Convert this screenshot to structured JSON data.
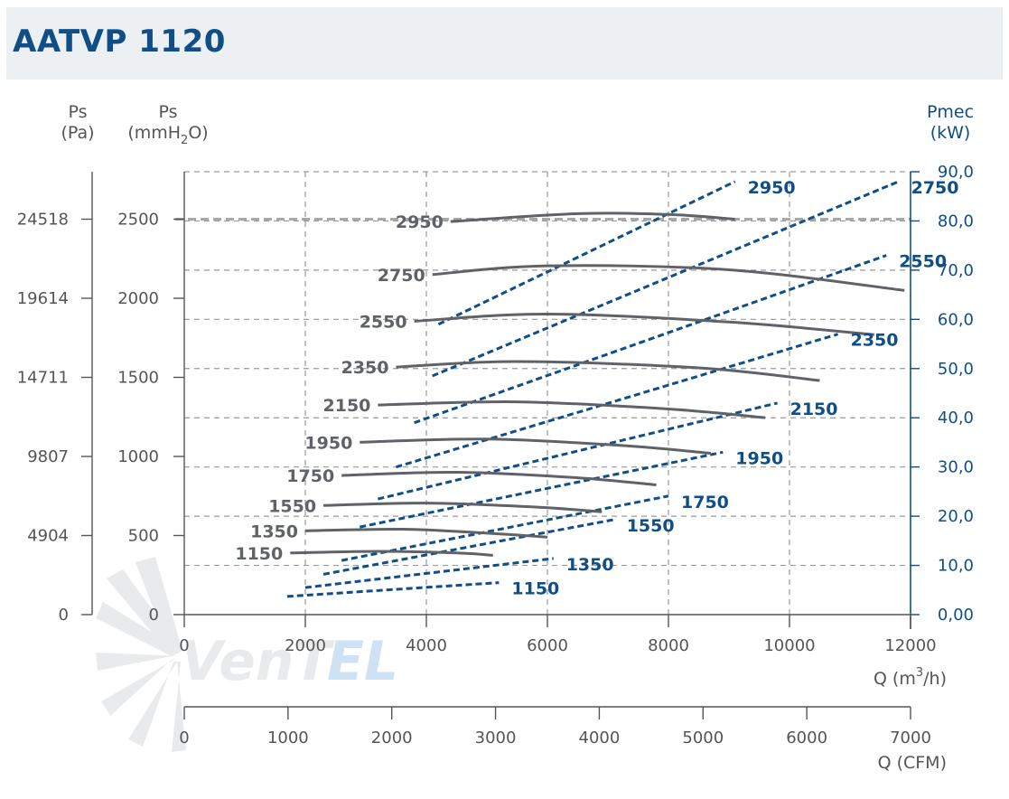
{
  "title": "AATVP 1120",
  "logo_text": "VenTEL",
  "colors": {
    "title": "#0f4e86",
    "header_bg": "#edf0f3",
    "pressure_curve": "#5f6368",
    "power_curve": "#0f4e86",
    "axis": "#555555",
    "grid": "#9a9a9a"
  },
  "chart_data": {
    "type": "line",
    "axes": {
      "y_left_pa": {
        "label": "Ps",
        "unit": "(Pa)",
        "ticks": [
          "0",
          "4904",
          "9807",
          "14711",
          "19614",
          "24518"
        ]
      },
      "y_left_mmh2o": {
        "label": "Ps",
        "unit_parts": [
          "(mmH",
          "2",
          "O)"
        ],
        "range": [
          0,
          2800
        ],
        "ticks": [
          "0",
          "500",
          "1000",
          "1500",
          "2000",
          "2500"
        ]
      },
      "y_right": {
        "label": "Pmec",
        "unit": "(kW)",
        "range": [
          0,
          90
        ],
        "ticks": [
          "0,00",
          "10,0",
          "20,0",
          "30,0",
          "40,0",
          "50,0",
          "60,0",
          "70,0",
          "80,0",
          "90,0"
        ]
      },
      "x_m3h": {
        "label_parts": [
          "Q (m",
          "3",
          "/h)"
        ],
        "range": [
          0,
          12000
        ],
        "ticks": [
          "0",
          "2000",
          "4000",
          "6000",
          "8000",
          "10000",
          "12000"
        ]
      },
      "x_cfm": {
        "label": "Q (CFM)",
        "range": [
          0,
          7000
        ],
        "ticks": [
          "0",
          "1000",
          "2000",
          "3000",
          "4000",
          "5000",
          "6000",
          "7000"
        ]
      }
    },
    "grid": true,
    "reference_line_ps": 2500,
    "pressure_series": [
      {
        "name": "1150",
        "points": [
          [
            1750,
            390
          ],
          [
            3200,
            400
          ],
          [
            4500,
            390
          ],
          [
            5100,
            375
          ]
        ]
      },
      {
        "name": "1350",
        "points": [
          [
            2000,
            530
          ],
          [
            3600,
            540
          ],
          [
            5000,
            515
          ],
          [
            6000,
            490
          ]
        ]
      },
      {
        "name": "1550",
        "points": [
          [
            2300,
            690
          ],
          [
            4000,
            705
          ],
          [
            5800,
            680
          ],
          [
            6900,
            650
          ]
        ]
      },
      {
        "name": "1750",
        "points": [
          [
            2600,
            880
          ],
          [
            4500,
            900
          ],
          [
            6500,
            865
          ],
          [
            7800,
            820
          ]
        ]
      },
      {
        "name": "1950",
        "points": [
          [
            2900,
            1090
          ],
          [
            5000,
            1110
          ],
          [
            7200,
            1070
          ],
          [
            8700,
            1020
          ]
        ]
      },
      {
        "name": "2150",
        "points": [
          [
            3200,
            1325
          ],
          [
            5500,
            1345
          ],
          [
            8000,
            1300
          ],
          [
            9600,
            1245
          ]
        ]
      },
      {
        "name": "2350",
        "points": [
          [
            3500,
            1565
          ],
          [
            5500,
            1600
          ],
          [
            8500,
            1560
          ],
          [
            10500,
            1480
          ]
        ]
      },
      {
        "name": "2550",
        "points": [
          [
            3800,
            1855
          ],
          [
            6000,
            1900
          ],
          [
            9000,
            1850
          ],
          [
            11400,
            1770
          ]
        ]
      },
      {
        "name": "2750",
        "points": [
          [
            4100,
            2150
          ],
          [
            6000,
            2205
          ],
          [
            9000,
            2180
          ],
          [
            11900,
            2050
          ]
        ]
      },
      {
        "name": "2950",
        "points": [
          [
            4400,
            2485
          ],
          [
            6500,
            2535
          ],
          [
            8000,
            2530
          ],
          [
            9100,
            2500
          ]
        ]
      }
    ],
    "power_series": [
      {
        "name": "1150",
        "points": [
          [
            1700,
            3.7
          ],
          [
            5200,
            6.5
          ]
        ]
      },
      {
        "name": "1350",
        "points": [
          [
            2000,
            5.5
          ],
          [
            6100,
            11.4
          ]
        ]
      },
      {
        "name": "1550",
        "points": [
          [
            2300,
            8.2
          ],
          [
            7100,
            19.3
          ]
        ]
      },
      {
        "name": "1750",
        "points": [
          [
            2600,
            11.0
          ],
          [
            8000,
            24.1
          ]
        ]
      },
      {
        "name": "1950",
        "points": [
          [
            2900,
            17.8
          ],
          [
            8900,
            33.0
          ]
        ]
      },
      {
        "name": "2150",
        "points": [
          [
            3200,
            23.5
          ],
          [
            9800,
            43.0
          ]
        ]
      },
      {
        "name": "2350",
        "points": [
          [
            3500,
            30.0
          ],
          [
            10800,
            57.0
          ]
        ]
      },
      {
        "name": "2550",
        "points": [
          [
            3800,
            39.0
          ],
          [
            11600,
            73.0
          ]
        ]
      },
      {
        "name": "2750",
        "points": [
          [
            4100,
            48.5
          ],
          [
            11800,
            88.0
          ]
        ]
      },
      {
        "name": "2950",
        "points": [
          [
            4200,
            59.0
          ],
          [
            9100,
            88.0
          ]
        ]
      }
    ]
  }
}
